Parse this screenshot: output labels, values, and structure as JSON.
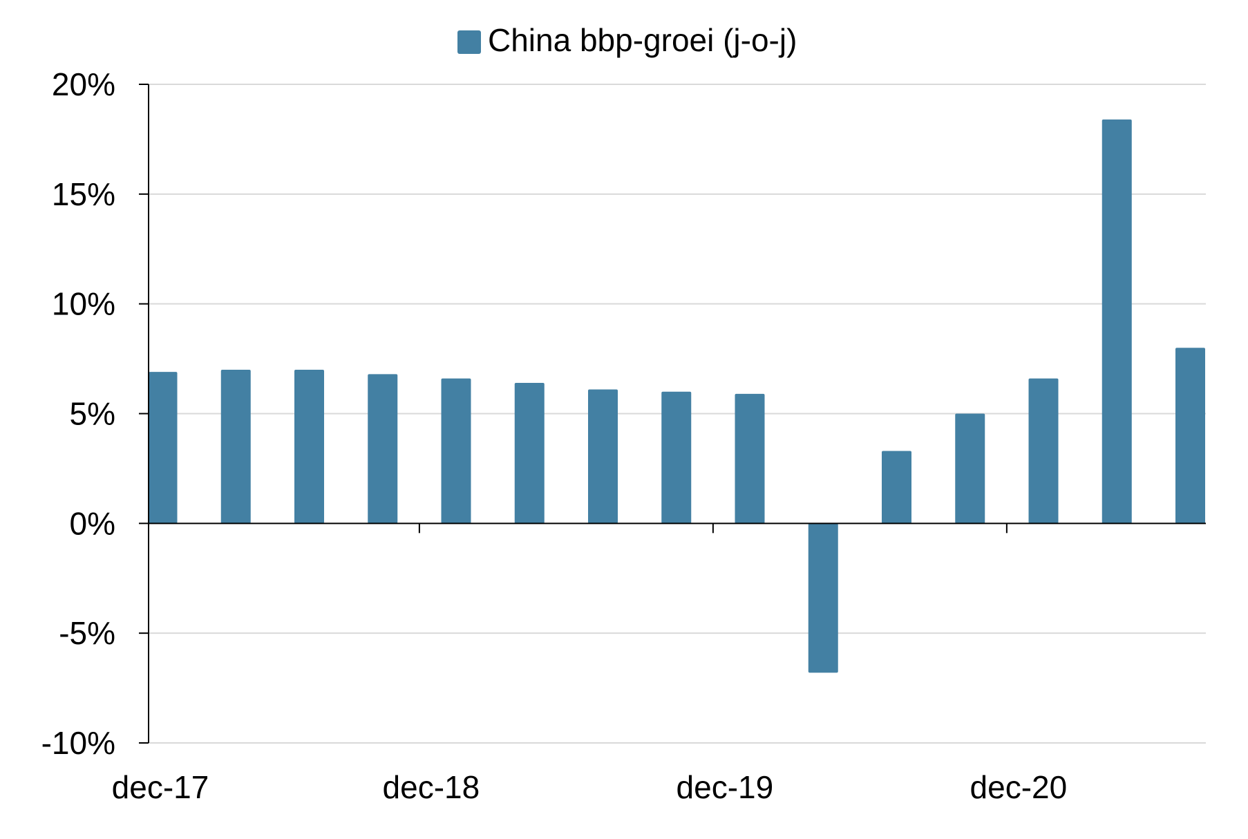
{
  "chart_data": {
    "type": "bar",
    "legend": {
      "label": "China bbp-groei (j-o-j)",
      "placement": "top-center"
    },
    "series": [
      {
        "name": "China bbp-groei (j-o-j)",
        "color": "#4380a3",
        "values": [
          6.9,
          7.0,
          7.0,
          6.8,
          6.6,
          6.4,
          6.1,
          6.0,
          5.9,
          -6.8,
          3.3,
          5.0,
          6.6,
          18.4,
          8.0
        ]
      }
    ],
    "y_axis": {
      "min": -10,
      "max": 20,
      "step": 5,
      "tick_labels": [
        "-10%",
        "-5%",
        "0%",
        "5%",
        "10%",
        "15%",
        "20%"
      ]
    },
    "x_axis": {
      "tick_labels": [
        {
          "label": "dec-17",
          "index": 0
        },
        {
          "label": "dec-18",
          "index": 4
        },
        {
          "label": "dec-19",
          "index": 8
        },
        {
          "label": "dec-20",
          "index": 12
        }
      ]
    },
    "gridlines": true,
    "gridline_color": "#d9d9d9",
    "axis_color": "#000000"
  }
}
